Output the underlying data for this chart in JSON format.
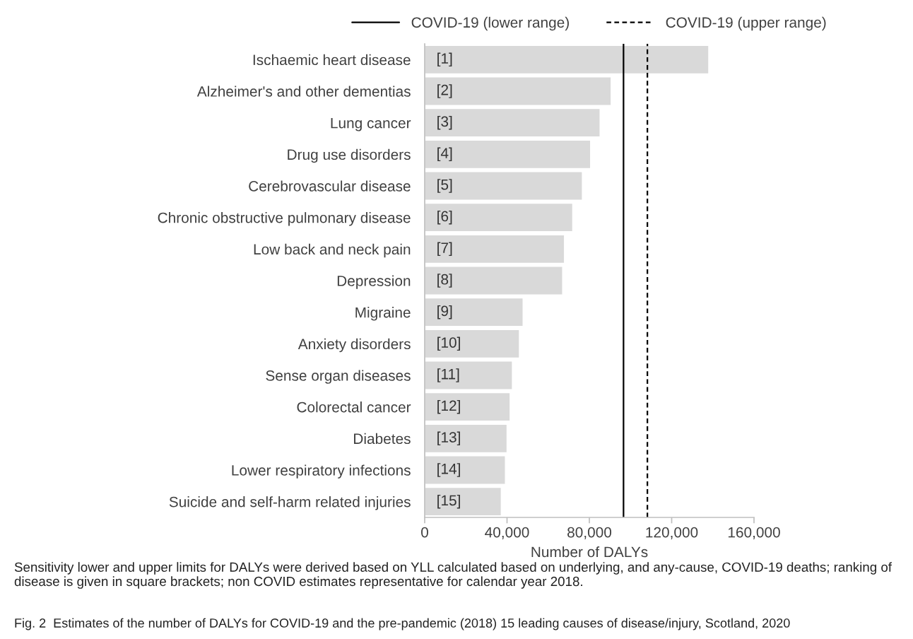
{
  "chart_data": {
    "type": "bar",
    "orientation": "horizontal",
    "categories": [
      "Ischaemic heart disease",
      "Alzheimer's and other dementias",
      "Lung cancer",
      "Drug use disorders",
      "Cerebrovascular disease",
      "Chronic obstructive pulmonary disease",
      "Low back and neck pain",
      "Depression",
      "Migraine",
      "Anxiety disorders",
      "Sense organ diseases",
      "Colorectal cancer",
      "Diabetes",
      "Lower respiratory infections",
      "Suicide and self-harm related injuries"
    ],
    "values": [
      138000,
      90600,
      85200,
      80600,
      76600,
      71900,
      67900,
      67000,
      47800,
      46000,
      42600,
      41500,
      40000,
      39200,
      37200
    ],
    "color": "#d9d9d9",
    "xlabel": "Number of DALYs",
    "xlim": [
      0,
      160000
    ],
    "xticks": [
      0,
      {
        "value": 40000,
        "label": "40,000"
      },
      {
        "value": 80000,
        "label": "80,000"
      },
      {
        "value": 120000,
        "label": "120,000"
      },
      {
        "value": 160000,
        "label": "160,000"
      }
    ],
    "ref_lines": [
      {
        "axis": "x",
        "value": 96600,
        "label": "COVID-19 (lower range)",
        "color": "#000000",
        "line_style": "solid"
      },
      {
        "axis": "x",
        "value": 108200,
        "label": "COVID-19 (upper range)",
        "color": "#000000",
        "line_style": "dashed"
      }
    ],
    "legend": "top",
    "grid": false,
    "annotations": [
      {
        "text": "[1]",
        "y": "Ischaemic heart disease"
      },
      {
        "text": "[2]",
        "y": "Alzheimer's and other dementias"
      },
      {
        "text": "[3]",
        "y": "Lung cancer"
      },
      {
        "text": "[4]",
        "y": "Drug use disorders"
      },
      {
        "text": "[5]",
        "y": "Cerebrovascular disease"
      },
      {
        "text": "[6]",
        "y": "Chronic obstructive pulmonary disease"
      },
      {
        "text": "[7]",
        "y": "Low back and neck pain"
      },
      {
        "text": "[8]",
        "y": "Depression"
      },
      {
        "text": "[9]",
        "y": "Migraine"
      },
      {
        "text": "[10]",
        "y": "Anxiety disorders"
      },
      {
        "text": "[11]",
        "y": "Sense organ diseases"
      },
      {
        "text": "[12]",
        "y": "Colorectal cancer"
      },
      {
        "text": "[13]",
        "y": "Diabetes"
      },
      {
        "text": "[14]",
        "y": "Lower respiratory infections"
      },
      {
        "text": "[15]",
        "y": "Suicide and self-harm related injuries"
      },
      "Sensitivity lower and upper limits for DALYs were derived based on YLL calculated based on underlying, and any-cause, COVID-19 deaths; ranking of disease is given in square brackets; non COVID estimates representative for calendar year 2018.",
      "Fig. 2  Estimates of the number of DALYs for COVID-19 and the pre-pandemic (2018) 15 leading causes of disease/injury, Scotland, 2020"
    ]
  }
}
